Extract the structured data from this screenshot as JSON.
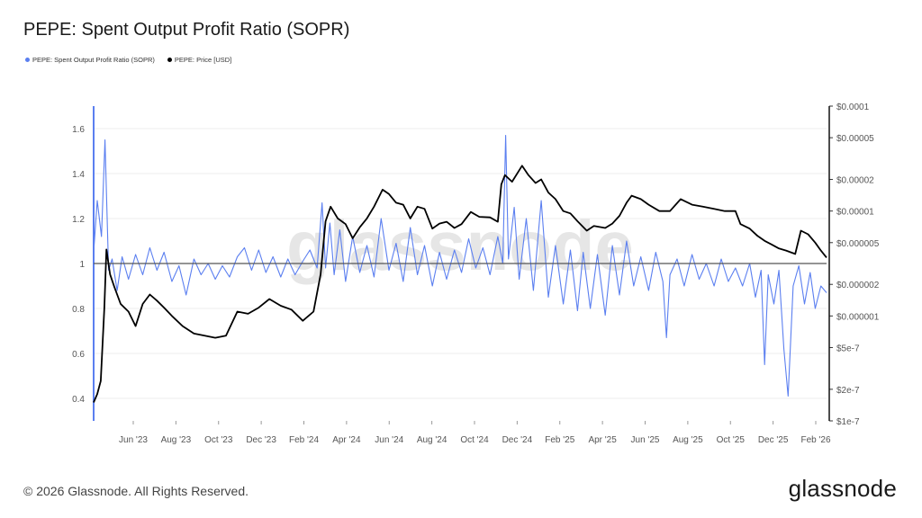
{
  "chart_data": {
    "type": "line",
    "title": "PEPE: Spent Output Profit Ratio (SOPR)",
    "xlabel": "",
    "ylabel": "",
    "x_ticks": [
      "Jun '23",
      "Aug '23",
      "Oct '23",
      "Dec '23",
      "Feb '24",
      "Apr '24",
      "Jun '24",
      "Aug '24",
      "Oct '24",
      "Dec '24",
      "Feb '25",
      "Apr '25",
      "Jun '25",
      "Aug '25",
      "Oct '25",
      "Dec '25",
      "Feb '26"
    ],
    "y_left_ticks": [
      "0.4",
      "0.6",
      "0.8",
      "1",
      "1.2",
      "1.4",
      "1.6"
    ],
    "y_left_range": [
      0.3,
      1.7
    ],
    "y_right_ticks": [
      "$1e-7",
      "$2e-7",
      "$5e-7",
      "$0.000001",
      "$0.000002",
      "$0.000005",
      "$0.00001",
      "$0.00002",
      "$0.00005",
      "$0.0001"
    ],
    "y_right_range": [
      1e-07,
      0.0001
    ],
    "y_right_scale": "log",
    "reference_line": 1,
    "x_range": [
      "2023-04-17",
      "2026-02-10"
    ],
    "legend_position": "top-left",
    "series": [
      {
        "name": "PEPE: Spent Output Profit Ratio (SOPR)",
        "axis": "left",
        "color": "#5b7ff0",
        "points": [
          [
            "2023-04-17",
            1.05
          ],
          [
            "2023-04-22",
            1.28
          ],
          [
            "2023-04-28",
            1.12
          ],
          [
            "2023-05-03",
            1.55
          ],
          [
            "2023-05-08",
            0.97
          ],
          [
            "2023-05-13",
            1.02
          ],
          [
            "2023-05-20",
            0.88
          ],
          [
            "2023-05-27",
            1.03
          ],
          [
            "2023-06-05",
            0.93
          ],
          [
            "2023-06-15",
            1.04
          ],
          [
            "2023-06-25",
            0.95
          ],
          [
            "2023-07-05",
            1.07
          ],
          [
            "2023-07-15",
            0.97
          ],
          [
            "2023-07-25",
            1.05
          ],
          [
            "2023-08-05",
            0.92
          ],
          [
            "2023-08-15",
            0.99
          ],
          [
            "2023-08-25",
            0.86
          ],
          [
            "2023-09-05",
            1.02
          ],
          [
            "2023-09-15",
            0.95
          ],
          [
            "2023-09-25",
            1.0
          ],
          [
            "2023-10-05",
            0.93
          ],
          [
            "2023-10-15",
            0.99
          ],
          [
            "2023-10-25",
            0.94
          ],
          [
            "2023-11-05",
            1.03
          ],
          [
            "2023-11-15",
            1.07
          ],
          [
            "2023-11-25",
            0.97
          ],
          [
            "2023-12-05",
            1.06
          ],
          [
            "2023-12-15",
            0.96
          ],
          [
            "2023-12-25",
            1.03
          ],
          [
            "2024-01-05",
            0.94
          ],
          [
            "2024-01-15",
            1.02
          ],
          [
            "2024-01-25",
            0.95
          ],
          [
            "2024-02-05",
            1.01
          ],
          [
            "2024-02-15",
            1.06
          ],
          [
            "2024-02-25",
            0.98
          ],
          [
            "2024-03-03",
            1.27
          ],
          [
            "2024-03-08",
            0.98
          ],
          [
            "2024-03-14",
            1.18
          ],
          [
            "2024-03-20",
            0.95
          ],
          [
            "2024-03-28",
            1.15
          ],
          [
            "2024-04-05",
            0.92
          ],
          [
            "2024-04-15",
            1.12
          ],
          [
            "2024-04-25",
            0.96
          ],
          [
            "2024-05-05",
            1.08
          ],
          [
            "2024-05-15",
            0.94
          ],
          [
            "2024-05-25",
            1.2
          ],
          [
            "2024-06-05",
            0.97
          ],
          [
            "2024-06-15",
            1.09
          ],
          [
            "2024-06-25",
            0.92
          ],
          [
            "2024-07-05",
            1.16
          ],
          [
            "2024-07-15",
            0.95
          ],
          [
            "2024-07-25",
            1.08
          ],
          [
            "2024-08-05",
            0.9
          ],
          [
            "2024-08-15",
            1.05
          ],
          [
            "2024-08-25",
            0.93
          ],
          [
            "2024-09-05",
            1.06
          ],
          [
            "2024-09-15",
            0.96
          ],
          [
            "2024-09-25",
            1.11
          ],
          [
            "2024-10-05",
            0.98
          ],
          [
            "2024-10-15",
            1.07
          ],
          [
            "2024-10-25",
            0.95
          ],
          [
            "2024-11-05",
            1.12
          ],
          [
            "2024-11-12",
            1.0
          ],
          [
            "2024-11-16",
            1.57
          ],
          [
            "2024-11-20",
            1.02
          ],
          [
            "2024-11-28",
            1.25
          ],
          [
            "2024-12-05",
            0.93
          ],
          [
            "2024-12-15",
            1.2
          ],
          [
            "2024-12-25",
            0.88
          ],
          [
            "2025-01-05",
            1.28
          ],
          [
            "2025-01-15",
            0.85
          ],
          [
            "2025-01-25",
            1.08
          ],
          [
            "2025-02-05",
            0.82
          ],
          [
            "2025-02-15",
            1.06
          ],
          [
            "2025-02-25",
            0.79
          ],
          [
            "2025-03-05",
            1.05
          ],
          [
            "2025-03-15",
            0.8
          ],
          [
            "2025-03-25",
            1.04
          ],
          [
            "2025-04-05",
            0.77
          ],
          [
            "2025-04-15",
            1.08
          ],
          [
            "2025-04-25",
            0.86
          ],
          [
            "2025-05-05",
            1.1
          ],
          [
            "2025-05-15",
            0.9
          ],
          [
            "2025-05-25",
            1.03
          ],
          [
            "2025-06-05",
            0.88
          ],
          [
            "2025-06-15",
            1.05
          ],
          [
            "2025-06-25",
            0.92
          ],
          [
            "2025-06-30",
            0.67
          ],
          [
            "2025-07-05",
            0.95
          ],
          [
            "2025-07-15",
            1.02
          ],
          [
            "2025-07-25",
            0.9
          ],
          [
            "2025-08-05",
            1.04
          ],
          [
            "2025-08-15",
            0.93
          ],
          [
            "2025-08-25",
            1.0
          ],
          [
            "2025-09-05",
            0.9
          ],
          [
            "2025-09-15",
            1.02
          ],
          [
            "2025-09-25",
            0.92
          ],
          [
            "2025-10-05",
            0.98
          ],
          [
            "2025-10-15",
            0.9
          ],
          [
            "2025-10-25",
            1.0
          ],
          [
            "2025-11-02",
            0.85
          ],
          [
            "2025-11-10",
            0.97
          ],
          [
            "2025-11-15",
            0.55
          ],
          [
            "2025-11-20",
            0.95
          ],
          [
            "2025-11-28",
            0.82
          ],
          [
            "2025-12-05",
            0.97
          ],
          [
            "2025-12-12",
            0.62
          ],
          [
            "2025-12-18",
            0.41
          ],
          [
            "2025-12-25",
            0.9
          ],
          [
            "2026-01-02",
            0.99
          ],
          [
            "2026-01-10",
            0.82
          ],
          [
            "2026-01-18",
            0.96
          ],
          [
            "2026-01-25",
            0.8
          ],
          [
            "2026-02-02",
            0.9
          ],
          [
            "2026-02-10",
            0.87
          ]
        ]
      },
      {
        "name": "PEPE: Price [USD]",
        "axis": "right",
        "color": "#000000",
        "points": [
          [
            "2023-04-17",
            1.5e-07
          ],
          [
            "2023-04-22",
            1.8e-07
          ],
          [
            "2023-04-27",
            2.4e-07
          ],
          [
            "2023-05-02",
            1.2e-06
          ],
          [
            "2023-05-05",
            4.3e-06
          ],
          [
            "2023-05-10",
            2.5e-06
          ],
          [
            "2023-05-16",
            1.9e-06
          ],
          [
            "2023-05-25",
            1.3e-06
          ],
          [
            "2023-06-05",
            1.1e-06
          ],
          [
            "2023-06-15",
            8e-07
          ],
          [
            "2023-06-25",
            1.3e-06
          ],
          [
            "2023-07-05",
            1.6e-06
          ],
          [
            "2023-07-15",
            1.4e-06
          ],
          [
            "2023-07-25",
            1.2e-06
          ],
          [
            "2023-08-05",
            1e-06
          ],
          [
            "2023-08-20",
            8e-07
          ],
          [
            "2023-09-05",
            6.8e-07
          ],
          [
            "2023-09-20",
            6.5e-07
          ],
          [
            "2023-10-05",
            6.2e-07
          ],
          [
            "2023-10-20",
            6.5e-07
          ],
          [
            "2023-11-05",
            1.1e-06
          ],
          [
            "2023-11-20",
            1.05e-06
          ],
          [
            "2023-12-05",
            1.2e-06
          ],
          [
            "2023-12-20",
            1.45e-06
          ],
          [
            "2024-01-05",
            1.25e-06
          ],
          [
            "2024-01-20",
            1.15e-06
          ],
          [
            "2024-02-05",
            9e-07
          ],
          [
            "2024-02-20",
            1.1e-06
          ],
          [
            "2024-03-01",
            2.5e-06
          ],
          [
            "2024-03-08",
            8e-06
          ],
          [
            "2024-03-15",
            1.1e-05
          ],
          [
            "2024-03-25",
            8.5e-06
          ],
          [
            "2024-04-05",
            7.5e-06
          ],
          [
            "2024-04-15",
            5.5e-06
          ],
          [
            "2024-04-25",
            7e-06
          ],
          [
            "2024-05-05",
            8.5e-06
          ],
          [
            "2024-05-15",
            1.1e-05
          ],
          [
            "2024-05-27",
            1.6e-05
          ],
          [
            "2024-06-05",
            1.45e-05
          ],
          [
            "2024-06-15",
            1.2e-05
          ],
          [
            "2024-06-25",
            1.15e-05
          ],
          [
            "2024-07-05",
            8.5e-06
          ],
          [
            "2024-07-15",
            1.1e-05
          ],
          [
            "2024-07-25",
            1.05e-05
          ],
          [
            "2024-08-05",
            6.8e-06
          ],
          [
            "2024-08-15",
            7.6e-06
          ],
          [
            "2024-08-25",
            7.9e-06
          ],
          [
            "2024-09-05",
            6.9e-06
          ],
          [
            "2024-09-15",
            7.5e-06
          ],
          [
            "2024-09-28",
            9.8e-06
          ],
          [
            "2024-10-10",
            8.8e-06
          ],
          [
            "2024-10-25",
            8.7e-06
          ],
          [
            "2024-11-05",
            7.9e-06
          ],
          [
            "2024-11-10",
            1.8e-05
          ],
          [
            "2024-11-15",
            2.2e-05
          ],
          [
            "2024-11-25",
            1.9e-05
          ],
          [
            "2024-12-09",
            2.7e-05
          ],
          [
            "2024-12-18",
            2.2e-05
          ],
          [
            "2024-12-28",
            1.85e-05
          ],
          [
            "2025-01-05",
            2e-05
          ],
          [
            "2025-01-15",
            1.5e-05
          ],
          [
            "2025-01-25",
            1.3e-05
          ],
          [
            "2025-02-05",
            1e-05
          ],
          [
            "2025-02-15",
            9.5e-06
          ],
          [
            "2025-02-25",
            8e-06
          ],
          [
            "2025-03-10",
            6.5e-06
          ],
          [
            "2025-03-20",
            7.2e-06
          ],
          [
            "2025-04-05",
            6.9e-06
          ],
          [
            "2025-04-15",
            7.6e-06
          ],
          [
            "2025-04-25",
            9e-06
          ],
          [
            "2025-05-05",
            1.2e-05
          ],
          [
            "2025-05-12",
            1.4e-05
          ],
          [
            "2025-05-25",
            1.3e-05
          ],
          [
            "2025-06-05",
            1.15e-05
          ],
          [
            "2025-06-20",
            1e-05
          ],
          [
            "2025-07-05",
            1e-05
          ],
          [
            "2025-07-20",
            1.3e-05
          ],
          [
            "2025-08-05",
            1.15e-05
          ],
          [
            "2025-08-20",
            1.1e-05
          ],
          [
            "2025-09-05",
            1.05e-05
          ],
          [
            "2025-09-20",
            1e-05
          ],
          [
            "2025-10-05",
            1e-05
          ],
          [
            "2025-10-12",
            7.5e-06
          ],
          [
            "2025-10-25",
            6.8e-06
          ],
          [
            "2025-11-05",
            5.8e-06
          ],
          [
            "2025-11-15",
            5.2e-06
          ],
          [
            "2025-11-25",
            4.8e-06
          ],
          [
            "2025-12-05",
            4.4e-06
          ],
          [
            "2025-12-15",
            4.2e-06
          ],
          [
            "2025-12-28",
            3.9e-06
          ],
          [
            "2026-01-05",
            6.5e-06
          ],
          [
            "2026-01-15",
            6e-06
          ],
          [
            "2026-01-25",
            5e-06
          ],
          [
            "2026-02-02",
            4.2e-06
          ],
          [
            "2026-02-10",
            3.6e-06
          ]
        ]
      }
    ]
  },
  "footer": {
    "copyright": "© 2026 Glassnode. All Rights Reserved.",
    "brand": "glassnode"
  },
  "watermark": "glassnode"
}
